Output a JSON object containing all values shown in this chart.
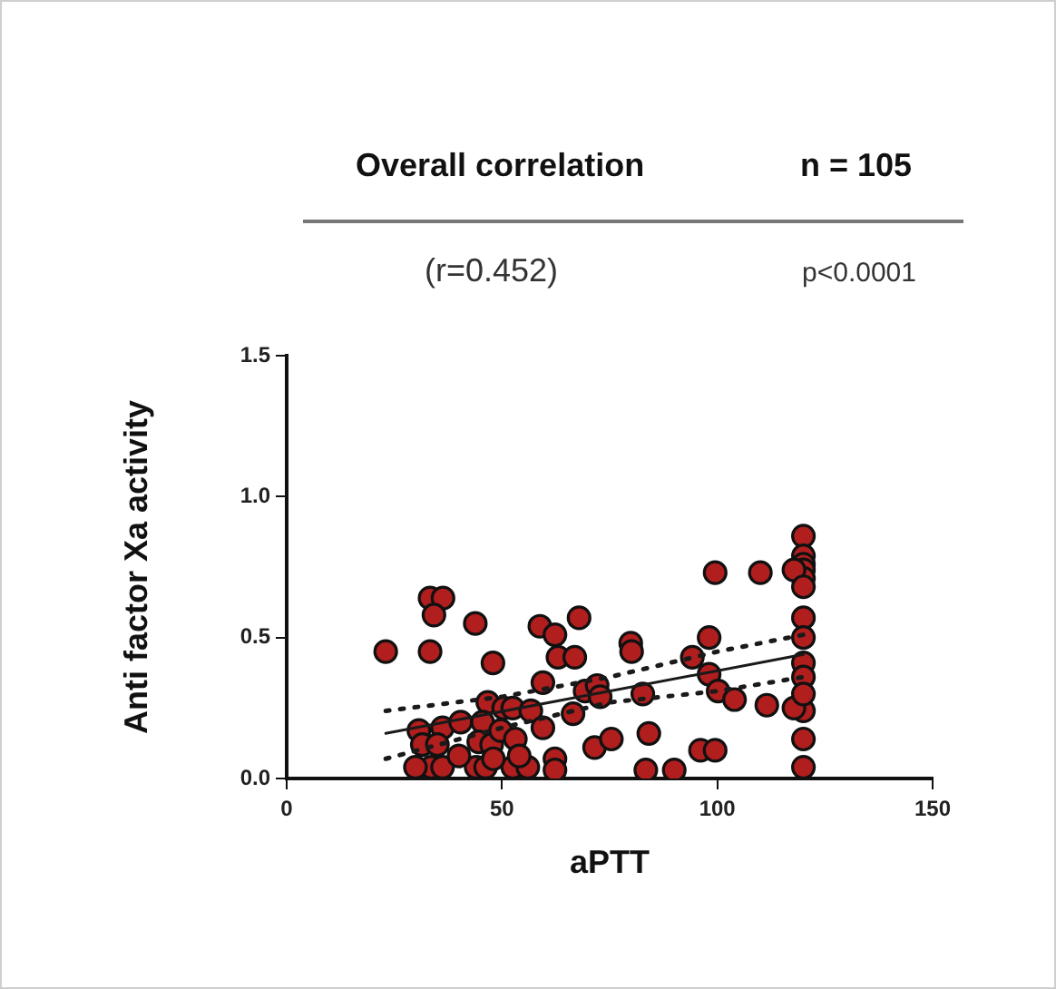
{
  "chart_data": {
    "type": "scatter",
    "title": "Overall correlation",
    "annotations": [
      "n = 105",
      "(r=0.452)",
      "p<0.0001"
    ],
    "xlabel": "aPTT",
    "ylabel": "Anti factor Xa activity",
    "xlim": [
      0,
      150
    ],
    "xticks": [
      0,
      50,
      100,
      150
    ],
    "ylim": [
      0,
      1.5
    ],
    "yticks": [
      {
        "value": 0,
        "label": "0.0"
      },
      0.5,
      {
        "value": 1,
        "label": "1.0"
      },
      1.5
    ],
    "grid": false,
    "legend": false,
    "series": [
      {
        "type": "scatter",
        "marker": "circle",
        "color": "#b01e1e",
        "x": [
          23.0,
          33.3,
          36.3,
          34.2,
          33.3,
          43.8,
          47.9,
          30.7,
          31.5,
          36.2,
          40.4,
          33.6,
          36.2,
          46.7,
          50.4,
          45.5,
          44.6,
          47.6,
          49.7,
          35.0,
          29.9,
          44.0,
          46.2,
          52.5,
          56.7,
          59.5,
          53.1,
          52.5,
          56.0,
          58.8,
          62.3,
          67.9,
          63.0,
          66.9,
          59.5,
          66.5,
          69.3,
          72.1,
          72.8,
          62.3,
          62.3,
          71.5,
          75.4,
          79.9,
          80.1,
          82.7,
          84.1,
          83.4,
          90.0,
          96.1,
          99.5,
          98.1,
          94.2,
          98.1,
          100.2,
          104.0,
          99.5,
          110.0,
          111.5,
          120,
          120,
          120,
          120,
          120,
          120,
          120,
          120,
          120,
          120,
          120,
          120,
          117.8,
          117.8,
          40.0,
          48.0,
          54.0,
          120,
          120
        ],
        "values": [
          0.45,
          0.64,
          0.64,
          0.58,
          0.45,
          0.55,
          0.41,
          0.17,
          0.12,
          0.18,
          0.2,
          0.04,
          0.04,
          0.27,
          0.25,
          0.2,
          0.13,
          0.12,
          0.17,
          0.12,
          0.04,
          0.04,
          0.04,
          0.25,
          0.24,
          0.18,
          0.14,
          0.04,
          0.04,
          0.54,
          0.51,
          0.57,
          0.43,
          0.43,
          0.34,
          0.23,
          0.31,
          0.33,
          0.29,
          0.07,
          0.03,
          0.11,
          0.14,
          0.48,
          0.45,
          0.3,
          0.16,
          0.03,
          0.03,
          0.1,
          0.1,
          0.5,
          0.43,
          0.37,
          0.31,
          0.28,
          0.73,
          0.73,
          0.26,
          0.86,
          0.79,
          0.76,
          0.74,
          0.71,
          0.57,
          0.5,
          0.41,
          0.36,
          0.24,
          0.14,
          0.04,
          0.74,
          0.25,
          0.08,
          0.07,
          0.08,
          0.68,
          0.3
        ]
      },
      {
        "type": "line",
        "marker": "none",
        "line_style": "solid",
        "color": "#1a1a1a",
        "x": [
          23,
          120
        ],
        "values": [
          0.16,
          0.44
        ]
      },
      {
        "type": "line",
        "marker": "none",
        "line_style": "dotted",
        "color": "#1a1a1a",
        "x": [
          23,
          50,
          75,
          100,
          120
        ],
        "values": [
          0.24,
          0.29,
          0.36,
          0.45,
          0.51
        ]
      },
      {
        "type": "line",
        "marker": "none",
        "line_style": "dotted",
        "color": "#1a1a1a",
        "x": [
          23,
          50,
          75,
          100,
          120
        ],
        "values": [
          0.07,
          0.18,
          0.27,
          0.31,
          0.36
        ]
      }
    ]
  }
}
